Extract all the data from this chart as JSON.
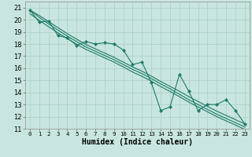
{
  "title": "",
  "xlabel": "Humidex (Indice chaleur)",
  "xlim": [
    -0.5,
    23.5
  ],
  "ylim": [
    11,
    21.5
  ],
  "xticks": [
    0,
    1,
    2,
    3,
    4,
    5,
    6,
    7,
    8,
    9,
    10,
    11,
    12,
    13,
    14,
    15,
    16,
    17,
    18,
    19,
    20,
    21,
    22,
    23
  ],
  "yticks": [
    11,
    12,
    13,
    14,
    15,
    16,
    17,
    18,
    19,
    20,
    21
  ],
  "bg_color": "#c8e6df",
  "grid_color": "#a8cfc8",
  "line_color": "#1e7a68",
  "s1_y": [
    20.8,
    19.8,
    19.9,
    18.7,
    18.5,
    17.9,
    18.2,
    18.0,
    18.1,
    18.0,
    17.5,
    16.3,
    16.5,
    14.8,
    12.5,
    12.8,
    15.5,
    14.1,
    12.5,
    13.0,
    13.0,
    13.4,
    12.5,
    11.4
  ],
  "s2_y": [
    20.8,
    20.35,
    19.85,
    19.35,
    18.85,
    18.4,
    17.95,
    17.6,
    17.25,
    16.9,
    16.5,
    16.1,
    15.75,
    15.35,
    14.9,
    14.5,
    14.1,
    13.65,
    13.25,
    12.85,
    12.45,
    12.1,
    11.75,
    11.4
  ],
  "s3_y": [
    20.8,
    20.2,
    19.65,
    19.15,
    18.65,
    18.2,
    17.75,
    17.4,
    17.05,
    16.7,
    16.3,
    15.9,
    15.55,
    15.15,
    14.7,
    14.3,
    13.85,
    13.4,
    13.0,
    12.6,
    12.2,
    11.85,
    11.5,
    11.15
  ],
  "s4_y": [
    20.5,
    19.95,
    19.42,
    18.92,
    18.45,
    17.98,
    17.55,
    17.2,
    16.85,
    16.5,
    16.1,
    15.68,
    15.33,
    14.93,
    14.48,
    14.08,
    13.65,
    13.2,
    12.8,
    12.4,
    12.0,
    11.65,
    11.3,
    10.95
  ],
  "tick_fontsize": 6,
  "xlabel_fontsize": 7
}
